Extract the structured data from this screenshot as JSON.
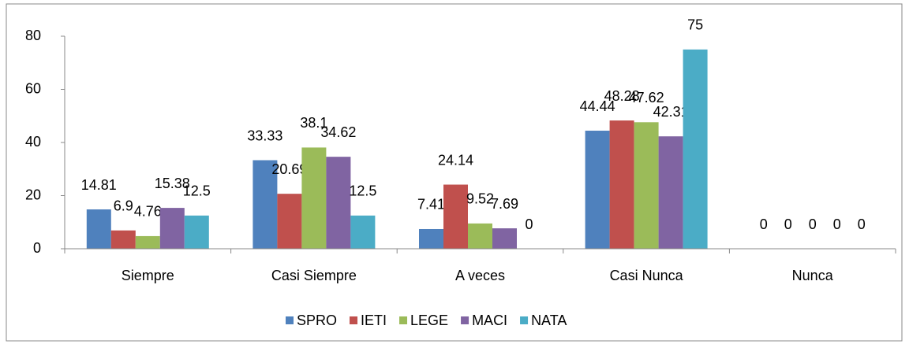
{
  "chart_data": {
    "type": "bar",
    "categories": [
      "Siempre",
      "Casi Siempre",
      "A veces",
      "Casi Nunca",
      "Nunca"
    ],
    "series": [
      {
        "name": "SPRO",
        "color": "#4f81bd",
        "values": [
          14.81,
          33.33,
          7.41,
          44.44,
          0
        ]
      },
      {
        "name": "IETI",
        "color": "#c0504d",
        "values": [
          6.9,
          20.69,
          24.14,
          48.28,
          0
        ]
      },
      {
        "name": "LEGE",
        "color": "#9bbb59",
        "values": [
          4.76,
          38.1,
          9.52,
          47.62,
          0
        ]
      },
      {
        "name": "MACI",
        "color": "#8064a2",
        "values": [
          15.38,
          34.62,
          7.69,
          42.31,
          0
        ]
      },
      {
        "name": "NATA",
        "color": "#4bacc6",
        "values": [
          12.5,
          12.5,
          0,
          75,
          0
        ]
      }
    ],
    "ylim": [
      0,
      80
    ],
    "yticks": [
      0,
      20,
      40,
      60,
      80
    ],
    "legend": "bottom"
  }
}
